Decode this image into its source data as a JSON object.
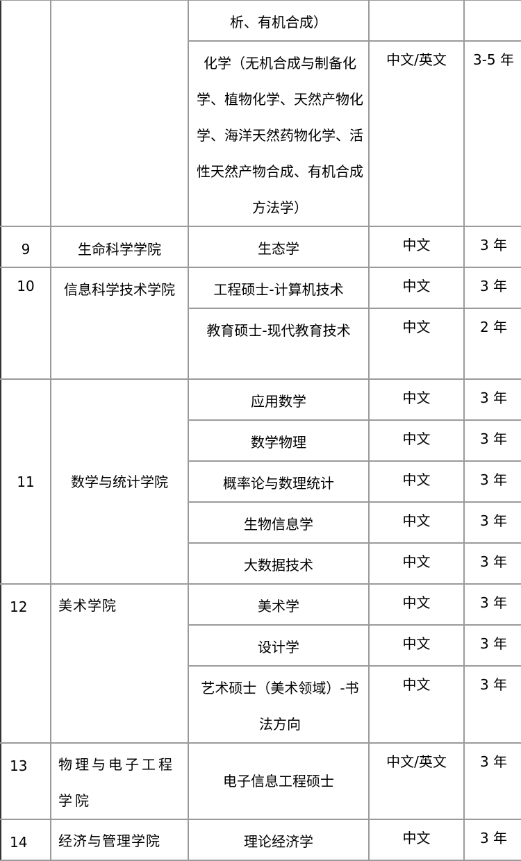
{
  "rows": [
    {
      "no": "",
      "college": "",
      "programs": [
        {
          "major": "析、有机合成）",
          "lang": "",
          "duration": ""
        },
        {
          "major": "化学（无机合成与制备化学、植物化学、天然产物化学、海洋天然药物化学、活性天然产物合成、有机合成方法学）",
          "lang": "中文/英文",
          "duration": "3-5 年"
        }
      ]
    },
    {
      "no": "9",
      "college": "生命科学学院",
      "programs": [
        {
          "major": "生态学",
          "lang": "中文",
          "duration": "3 年"
        }
      ]
    },
    {
      "no": "10",
      "college": "信息科学技术学院",
      "programs": [
        {
          "major": "工程硕士-计算机技术",
          "lang": "中文",
          "duration": "3 年"
        },
        {
          "major": "教育硕士-现代教育技术",
          "lang": "中文",
          "duration": "2 年"
        }
      ]
    },
    {
      "no": "11",
      "college": "数学与统计学院",
      "programs": [
        {
          "major": "应用数学",
          "lang": "中文",
          "duration": "3 年"
        },
        {
          "major": "数学物理",
          "lang": "中文",
          "duration": "3 年"
        },
        {
          "major": "概率论与数理统计",
          "lang": "中文",
          "duration": "3 年"
        },
        {
          "major": "生物信息学",
          "lang": "中文",
          "duration": "3 年"
        },
        {
          "major": "大数据技术",
          "lang": "中文",
          "duration": "3 年"
        }
      ]
    },
    {
      "no": "12",
      "college": "美术学院",
      "programs": [
        {
          "major": "美术学",
          "lang": "中文",
          "duration": "3 年"
        },
        {
          "major": "设计学",
          "lang": "中文",
          "duration": "3 年"
        },
        {
          "major": "艺术硕士（美术领域）-书法方向",
          "lang": "中文",
          "duration": "3 年"
        }
      ]
    },
    {
      "no": "13",
      "college": "物理与电子工程学院",
      "programs": [
        {
          "major": "电子信息工程硕士",
          "lang": "中文/英文",
          "duration": "3 年"
        }
      ]
    },
    {
      "no": "14",
      "college": "经济与管理学院",
      "programs": [
        {
          "major": "理论经济学",
          "lang": "中文",
          "duration": "3 年"
        }
      ]
    }
  ]
}
